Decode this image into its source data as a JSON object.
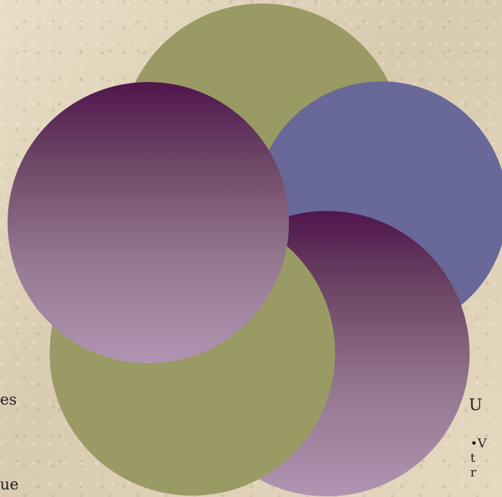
{
  "left_fragments": [
    "es",
    "ue"
  ],
  "right_heading": "U",
  "right_lines": [
    "•V",
    " t",
    " r"
  ],
  "colors": {
    "olive": "#9a9a64",
    "slate_purple": "#686899",
    "plum_dark": "#4f164d",
    "plum_light": "#b094b2"
  }
}
